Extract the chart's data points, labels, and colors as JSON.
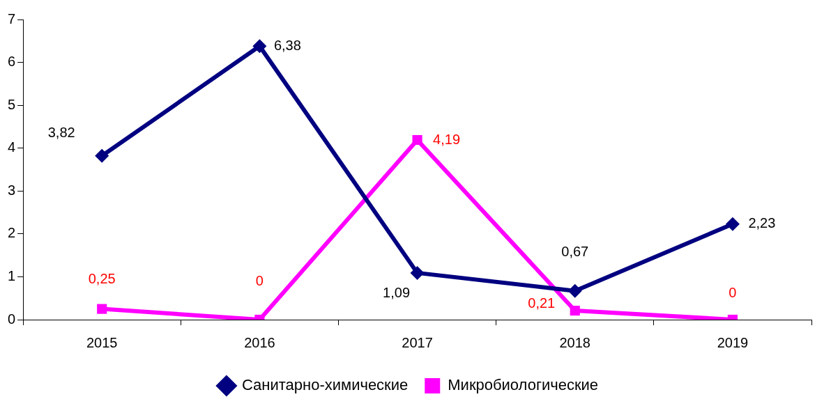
{
  "chart_data": {
    "type": "line",
    "categories": [
      "2015",
      "2016",
      "2017",
      "2018",
      "2019"
    ],
    "series": [
      {
        "name": "Санитарно-химические",
        "color": "#000080",
        "marker": "diamond",
        "values": [
          3.82,
          6.38,
          1.09,
          0.67,
          2.23
        ],
        "value_labels": [
          "3,82",
          "6,38",
          "1,09",
          "0,67",
          "2,23"
        ]
      },
      {
        "name": "Микробиологические",
        "color": "#ff00ff",
        "marker": "square",
        "values": [
          0.25,
          0,
          4.19,
          0.21,
          0
        ],
        "value_labels": [
          "0,25",
          "0",
          "4,19",
          "0,21",
          "0"
        ]
      }
    ],
    "ylim": [
      0,
      7
    ],
    "yticks": [
      0,
      1,
      2,
      3,
      4,
      5,
      6,
      7
    ],
    "grid": false,
    "legend": "bottom",
    "line_style": "solid"
  }
}
